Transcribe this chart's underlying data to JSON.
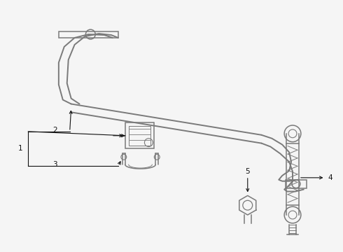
{
  "bg_color": "#f5f5f5",
  "line_color": "#7a7a7a",
  "label_color": "#111111",
  "lw_bar": 1.4,
  "lw_part": 1.1,
  "lw_label": 0.8,
  "label_fs": 7.5
}
